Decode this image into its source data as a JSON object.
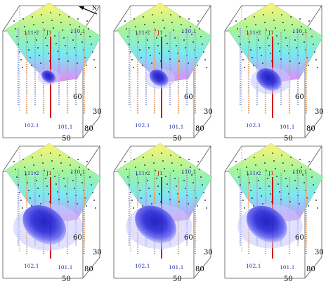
{
  "north_symbol": "N",
  "panels": [
    {
      "id": "p1",
      "plume": 0.1,
      "wells": {
        "a": "111.2",
        "b": "J1",
        "c": "110.1",
        "d": "102.1",
        "e": "101.1"
      },
      "ticks": {
        "t1": "60",
        "t2": "30",
        "t3": "80",
        "t4": "50"
      }
    },
    {
      "id": "p2",
      "plume": 0.22,
      "wells": {
        "a": "111.2",
        "b": "J1",
        "c": "110.1",
        "d": "102.1",
        "e": "101.1"
      },
      "ticks": {
        "t1": "60",
        "t2": "30",
        "t3": "80",
        "t4": "50"
      }
    },
    {
      "id": "p3",
      "plume": 0.38,
      "wells": {
        "a": "111.2",
        "b": "J1",
        "c": "110.1",
        "d": "102.1",
        "e": "101.1"
      },
      "ticks": {
        "t1": "60",
        "t2": "30",
        "t3": "80",
        "t4": "50"
      }
    },
    {
      "id": "p4",
      "plume": 0.85,
      "wells": {
        "a": "111.2",
        "b": "J1",
        "c": "110.1",
        "d": "102.1",
        "e": "101.1"
      },
      "ticks": {
        "t1": "60",
        "t2": "30",
        "t3": "80",
        "t4": "50"
      }
    },
    {
      "id": "p5",
      "plume": 0.8,
      "wells": {
        "a": "111.2",
        "b": "J1",
        "c": "110.1",
        "d": "102.1",
        "e": "101.1"
      },
      "ticks": {
        "t1": "60",
        "t2": "30",
        "t3": "80",
        "t4": "50"
      }
    },
    {
      "id": "p6",
      "plume": 0.78,
      "wells": {
        "a": "111.2",
        "b": "J1",
        "c": "110.1",
        "d": "102.1",
        "e": "101.1"
      },
      "ticks": {
        "t1": "60",
        "t2": "30",
        "t3": "80",
        "t4": "50"
      }
    }
  ],
  "colors": {
    "surface_low": "#ff66ff",
    "surface_mid": "#66ffff",
    "surface_high": "#ffff66",
    "plume_core": "#1a1acc",
    "plume_edge": "#8888ff",
    "well_red": "#cc0000",
    "well_label": "#2233aa",
    "j1_label": "#cc0000"
  }
}
